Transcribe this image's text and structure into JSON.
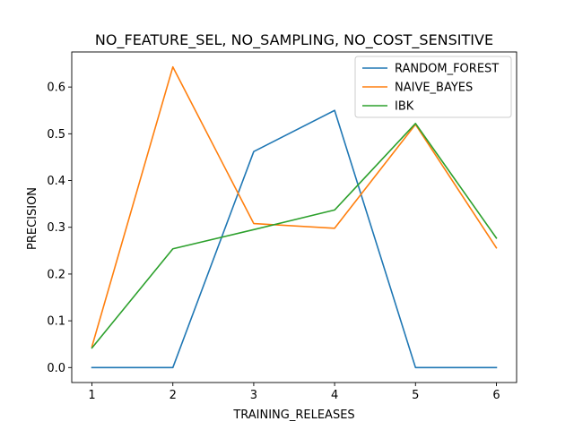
{
  "chart_data": {
    "type": "line",
    "title": "NO_FEATURE_SEL, NO_SAMPLING, NO_COST_SENSITIVE",
    "xlabel": "TRAINING_RELEASES",
    "ylabel": "PRECISION",
    "x": [
      1,
      2,
      3,
      4,
      5,
      6
    ],
    "xlim": [
      0.75,
      6.25
    ],
    "ylim": [
      -0.032,
      0.675
    ],
    "xticks": [
      1,
      2,
      3,
      4,
      5,
      6
    ],
    "yticks": [
      0.0,
      0.1,
      0.2,
      0.3,
      0.4,
      0.5,
      0.6
    ],
    "ytick_labels": [
      "0.0",
      "0.1",
      "0.2",
      "0.3",
      "0.4",
      "0.5",
      "0.6"
    ],
    "grid": false,
    "legend_position": "top-right",
    "series": [
      {
        "name": "RANDOM_FOREST",
        "color": "#1f77b4",
        "values": [
          0.0,
          0.0,
          0.462,
          0.55,
          0.0,
          0.0
        ]
      },
      {
        "name": "NAIVE_BAYES",
        "color": "#ff7f0e",
        "values": [
          0.045,
          0.643,
          0.308,
          0.298,
          0.52,
          0.256
        ]
      },
      {
        "name": "IBK",
        "color": "#2ca02c",
        "values": [
          0.042,
          0.254,
          0.295,
          0.337,
          0.522,
          0.277
        ]
      }
    ]
  }
}
